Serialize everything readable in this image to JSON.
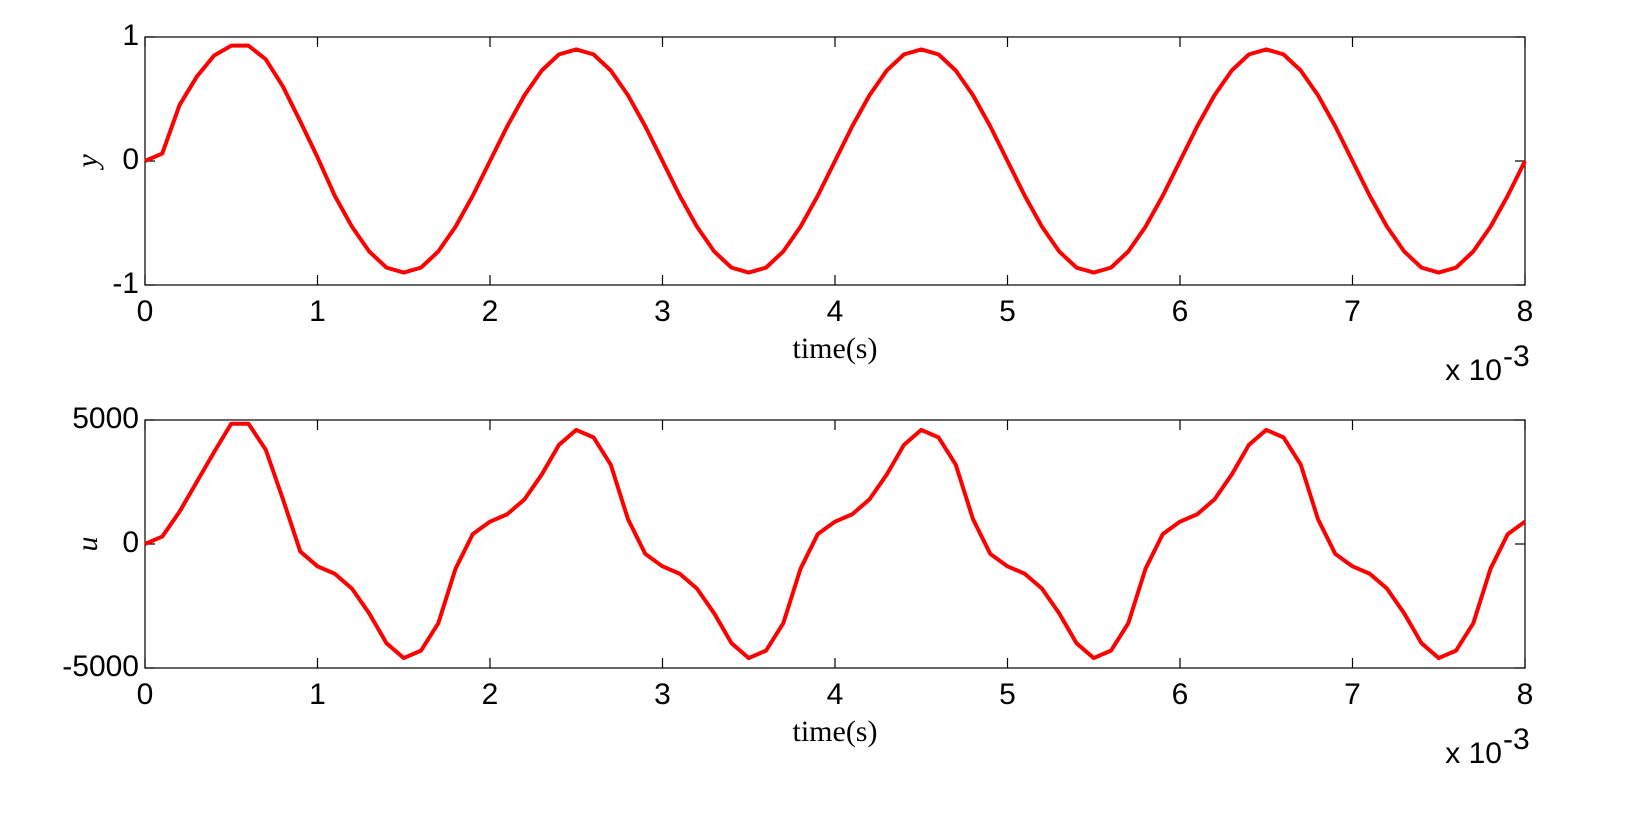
{
  "chart_data": [
    {
      "type": "line",
      "xlabel": "time(s)",
      "ylabel": "y",
      "x_multiplier": "x 10",
      "x_exponent": "-3",
      "x": [
        0,
        0.1,
        0.2,
        0.3,
        0.4,
        0.5,
        0.6,
        0.7,
        0.8,
        0.9,
        1,
        1.1,
        1.2,
        1.3,
        1.4,
        1.5,
        1.6,
        1.7,
        1.8,
        1.9,
        2,
        2.1,
        2.2,
        2.3,
        2.4,
        2.5,
        2.6,
        2.7,
        2.8,
        2.9,
        3,
        3.1,
        3.2,
        3.3,
        3.4,
        3.5,
        3.6,
        3.7,
        3.8,
        3.9,
        4,
        4.1,
        4.2,
        4.3,
        4.4,
        4.5,
        4.6,
        4.7,
        4.8,
        4.9,
        5,
        5.1,
        5.2,
        5.3,
        5.4,
        5.5,
        5.6,
        5.7,
        5.8,
        5.9,
        6,
        6.1,
        6.2,
        6.3,
        6.4,
        6.5,
        6.6,
        6.7,
        6.8,
        6.9,
        7,
        7.1,
        7.2,
        7.3,
        7.4,
        7.5,
        7.6,
        7.7,
        7.8,
        7.9,
        8
      ],
      "series": [
        {
          "color": "#ff0000",
          "values": [
            0,
            0.06,
            0.45,
            0.68,
            0.85,
            0.93,
            0.93,
            0.82,
            0.6,
            0.32,
            0.03,
            -0.28,
            -0.53,
            -0.73,
            -0.86,
            -0.9,
            -0.86,
            -0.73,
            -0.53,
            -0.28,
            0,
            0.28,
            0.53,
            0.73,
            0.86,
            0.9,
            0.86,
            0.73,
            0.53,
            0.28,
            0,
            -0.28,
            -0.53,
            -0.73,
            -0.86,
            -0.9,
            -0.86,
            -0.73,
            -0.53,
            -0.28,
            0,
            0.28,
            0.53,
            0.73,
            0.86,
            0.9,
            0.86,
            0.73,
            0.53,
            0.28,
            0,
            -0.28,
            -0.53,
            -0.73,
            -0.86,
            -0.9,
            -0.86,
            -0.73,
            -0.53,
            -0.28,
            0,
            0.28,
            0.53,
            0.73,
            0.86,
            0.9,
            0.86,
            0.73,
            0.53,
            0.28,
            0,
            -0.28,
            -0.53,
            -0.73,
            -0.86,
            -0.9,
            -0.86,
            -0.73,
            -0.53,
            -0.28,
            0
          ]
        }
      ],
      "xlim": [
        0,
        8
      ],
      "xticks": [
        0,
        1,
        2,
        3,
        4,
        5,
        6,
        7,
        8
      ],
      "ylim": [
        -1,
        1
      ],
      "yticks": [
        -1,
        0,
        1
      ]
    },
    {
      "type": "line",
      "xlabel": "time(s)",
      "ylabel": "u",
      "x_multiplier": "x 10",
      "x_exponent": "-3",
      "x": [
        0,
        0.1,
        0.2,
        0.3,
        0.4,
        0.5,
        0.6,
        0.7,
        0.8,
        0.9,
        1,
        1.1,
        1.2,
        1.3,
        1.4,
        1.5,
        1.6,
        1.7,
        1.8,
        1.9,
        2,
        2.1,
        2.2,
        2.3,
        2.4,
        2.5,
        2.6,
        2.7,
        2.8,
        2.9,
        3,
        3.1,
        3.2,
        3.3,
        3.4,
        3.5,
        3.6,
        3.7,
        3.8,
        3.9,
        4,
        4.1,
        4.2,
        4.3,
        4.4,
        4.5,
        4.6,
        4.7,
        4.8,
        4.9,
        5,
        5.1,
        5.2,
        5.3,
        5.4,
        5.5,
        5.6,
        5.7,
        5.8,
        5.9,
        6,
        6.1,
        6.2,
        6.3,
        6.4,
        6.5,
        6.6,
        6.7,
        6.8,
        6.9,
        7,
        7.1,
        7.2,
        7.3,
        7.4,
        7.5,
        7.6,
        7.7,
        7.8,
        7.9,
        8
      ],
      "series": [
        {
          "color": "#ff0000",
          "values": [
            0,
            300,
            1300,
            2500,
            3700,
            4850,
            4850,
            3800,
            1800,
            -300,
            -900,
            -1200,
            -1800,
            -2800,
            -4000,
            -4600,
            -4300,
            -3200,
            -1000,
            400,
            900,
            1200,
            1800,
            2800,
            4000,
            4600,
            4300,
            3200,
            1000,
            -400,
            -900,
            -1200,
            -1800,
            -2800,
            -4000,
            -4600,
            -4300,
            -3200,
            -1000,
            400,
            900,
            1200,
            1800,
            2800,
            4000,
            4600,
            4300,
            3200,
            1000,
            -400,
            -900,
            -1200,
            -1800,
            -2800,
            -4000,
            -4600,
            -4300,
            -3200,
            -1000,
            400,
            900,
            1200,
            1800,
            2800,
            4000,
            4600,
            4300,
            3200,
            1000,
            -400,
            -900,
            -1200,
            -1800,
            -2800,
            -4000,
            -4600,
            -4300,
            -3200,
            -1000,
            400,
            900
          ]
        }
      ],
      "xlim": [
        0,
        8
      ],
      "xticks": [
        0,
        1,
        2,
        3,
        4,
        5,
        6,
        7,
        8
      ],
      "ylim": [
        -5000,
        5000
      ],
      "yticks": [
        -5000,
        0,
        5000
      ]
    }
  ]
}
